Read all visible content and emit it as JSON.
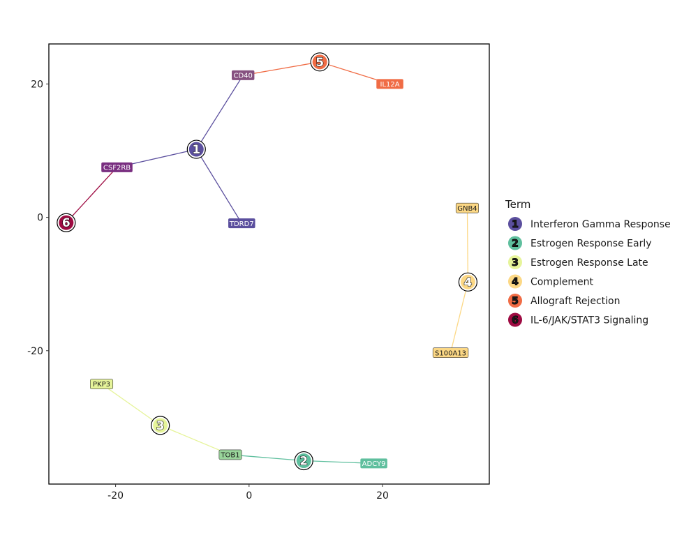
{
  "chart_data": {
    "type": "scatter",
    "title": "",
    "xlabel": "",
    "ylabel": "",
    "xlim": [
      -30,
      36
    ],
    "ylim": [
      -40,
      26
    ],
    "xticks": [
      -20,
      0,
      20
    ],
    "yticks": [
      -20,
      0,
      20
    ],
    "xtick_labels": [
      "-20",
      "0",
      "20"
    ],
    "ytick_labels": [
      "-20",
      "0",
      "20"
    ],
    "grid": false,
    "legend_position": "right",
    "legend": {
      "title": "Term",
      "entries": [
        {
          "id": "1",
          "label": "Interferon Gamma Response",
          "color": "#5b4f9e"
        },
        {
          "id": "2",
          "label": "Estrogen Response Early",
          "color": "#5fbf9e"
        },
        {
          "id": "3",
          "label": "Estrogen Response Late",
          "color": "#e6f49a"
        },
        {
          "id": "4",
          "label": "Complement",
          "color": "#fcd885"
        },
        {
          "id": "5",
          "label": "Allograft Rejection",
          "color": "#f06c45"
        },
        {
          "id": "6",
          "label": "IL-6/JAK/STAT3 Signaling",
          "color": "#9e0b42"
        }
      ]
    },
    "hubs": [
      {
        "id": "1",
        "x": -7.9,
        "y": 10.2,
        "color": "#5b4f9e"
      },
      {
        "id": "2",
        "x": 8.2,
        "y": -36.5,
        "color": "#5fbf9e"
      },
      {
        "id": "3",
        "x": -13.3,
        "y": -31.2,
        "color": "#e6f49a"
      },
      {
        "id": "4",
        "x": 32.8,
        "y": -9.7,
        "color": "#fcd885"
      },
      {
        "id": "5",
        "x": 10.6,
        "y": 23.3,
        "color": "#f06c45"
      },
      {
        "id": "6",
        "x": -27.4,
        "y": -0.8,
        "color": "#9e0b42"
      }
    ],
    "genes": [
      {
        "label": "CD40",
        "x": -0.9,
        "y": 21.3,
        "color": "#865180",
        "text_color": "#ffffff"
      },
      {
        "label": "IL12A",
        "x": 21.1,
        "y": 20.0,
        "color": "#f06c45",
        "text_color": "#ffffff"
      },
      {
        "label": "CSF2RB",
        "x": -19.8,
        "y": 7.5,
        "color": "#792e80",
        "text_color": "#ffffff"
      },
      {
        "label": "TDRD7",
        "x": -1.1,
        "y": -0.9,
        "color": "#5b4f9e",
        "text_color": "#ffffff"
      },
      {
        "label": "GNB4",
        "x": 32.7,
        "y": 1.4,
        "color": "#fcd885",
        "text_color": "#1a1a1a"
      },
      {
        "label": "S100A13",
        "x": 30.2,
        "y": -20.3,
        "color": "#fcd885",
        "text_color": "#1a1a1a"
      },
      {
        "label": "PKP3",
        "x": -22.1,
        "y": -25.0,
        "color": "#e6f49a",
        "text_color": "#1a1a1a"
      },
      {
        "label": "TOB1",
        "x": -2.8,
        "y": -35.6,
        "color": "#99d59a",
        "text_color": "#1a1a1a"
      },
      {
        "label": "ADCY9",
        "x": 18.7,
        "y": -36.9,
        "color": "#5fbf9e",
        "text_color": "#ffffff"
      }
    ],
    "edges": [
      {
        "hub": "1",
        "gene": "CD40",
        "color": "#5b4f9e"
      },
      {
        "hub": "1",
        "gene": "CSF2RB",
        "color": "#5b4f9e"
      },
      {
        "hub": "1",
        "gene": "TDRD7",
        "color": "#5b4f9e"
      },
      {
        "hub": "5",
        "gene": "CD40",
        "color": "#f06c45"
      },
      {
        "hub": "5",
        "gene": "IL12A",
        "color": "#f06c45"
      },
      {
        "hub": "6",
        "gene": "CSF2RB",
        "color": "#9e0b42"
      },
      {
        "hub": "4",
        "gene": "GNB4",
        "color": "#fcd885"
      },
      {
        "hub": "4",
        "gene": "S100A13",
        "color": "#fcd885"
      },
      {
        "hub": "3",
        "gene": "PKP3",
        "color": "#e6f49a"
      },
      {
        "hub": "3",
        "gene": "TOB1",
        "color": "#e6f49a"
      },
      {
        "hub": "2",
        "gene": "TOB1",
        "color": "#5fbf9e"
      },
      {
        "hub": "2",
        "gene": "ADCY9",
        "color": "#5fbf9e"
      }
    ]
  }
}
